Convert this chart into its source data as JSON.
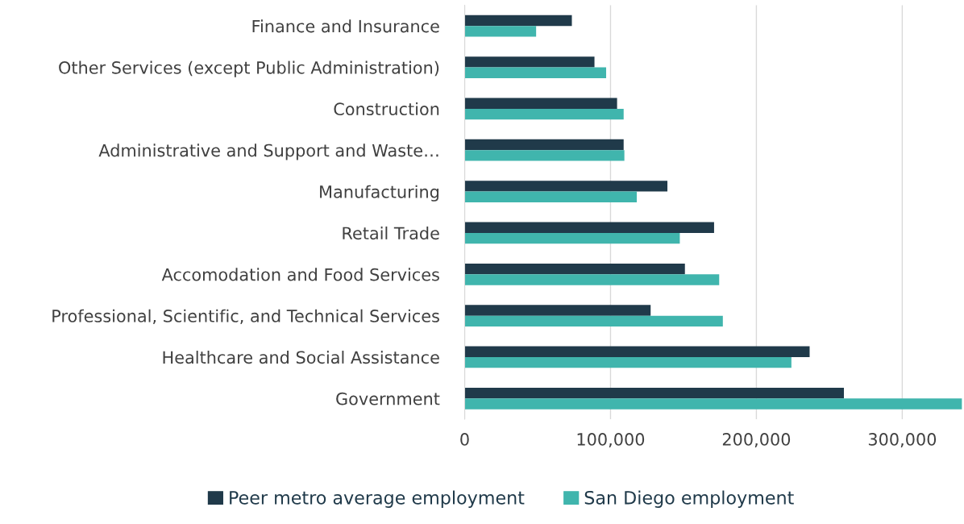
{
  "chart_data": {
    "type": "bar",
    "orientation": "horizontal",
    "categories": [
      "Finance and Insurance",
      "Other Services (except Public Administration)",
      "Construction",
      "Administrative and Support and Waste…",
      "Manufacturing",
      "Retail Trade",
      "Accomodation and Food Services",
      "Professional, Scientific, and Technical Services",
      "Healthcare and Social Assistance",
      "Government"
    ],
    "series": [
      {
        "name": "Peer metro average employment",
        "color": "#203a4a",
        "values": [
          73500,
          89000,
          104500,
          109000,
          139000,
          171000,
          151000,
          127500,
          236500,
          260000
        ]
      },
      {
        "name": "San Diego employment",
        "color": "#40b5ad",
        "values": [
          49000,
          97000,
          109000,
          109500,
          118000,
          147500,
          174500,
          177000,
          224000,
          341000
        ]
      }
    ],
    "xlim": [
      0,
      341000
    ],
    "xticks": [
      {
        "value": 0,
        "label": "0"
      },
      {
        "value": 100000,
        "label": "100,000"
      },
      {
        "value": 200000,
        "label": "200,000"
      },
      {
        "value": 300000,
        "label": "300,000"
      }
    ],
    "grid": "x",
    "legend": "bottom"
  }
}
